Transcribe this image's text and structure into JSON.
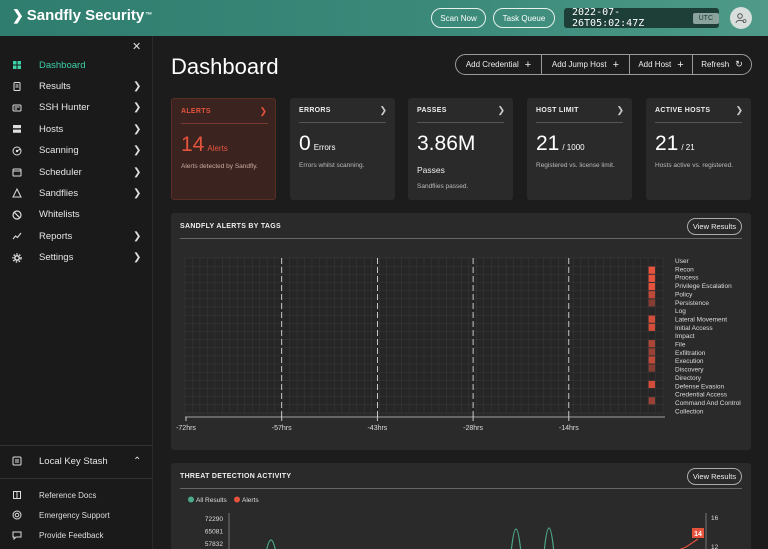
{
  "app": {
    "name": "Sandfly Security",
    "tm": "™"
  },
  "topbar": {
    "scan_now": "Scan Now",
    "task_queue": "Task Queue",
    "clock": "2022-07-26T05:02:47Z",
    "tz": "UTC"
  },
  "sidebar": {
    "items": [
      {
        "label": "Dashboard",
        "icon": "dashboard-icon",
        "active": true,
        "arrow": false
      },
      {
        "label": "Results",
        "icon": "clipboard-icon",
        "active": false,
        "arrow": true
      },
      {
        "label": "SSH Hunter",
        "icon": "ssh-key-icon",
        "active": false,
        "arrow": true
      },
      {
        "label": "Hosts",
        "icon": "server-icon",
        "active": false,
        "arrow": true
      },
      {
        "label": "Scanning",
        "icon": "radar-icon",
        "active": false,
        "arrow": true
      },
      {
        "label": "Scheduler",
        "icon": "calendar-icon",
        "active": false,
        "arrow": true
      },
      {
        "label": "Sandflies",
        "icon": "sandfly-icon",
        "active": false,
        "arrow": true
      },
      {
        "label": "Whitelists",
        "icon": "ban-icon",
        "active": false,
        "arrow": false
      },
      {
        "label": "Reports",
        "icon": "chart-line-icon",
        "active": false,
        "arrow": true
      },
      {
        "label": "Settings",
        "icon": "gear-icon",
        "active": false,
        "arrow": true
      }
    ],
    "key_stash": "Local Key Stash",
    "footer": [
      {
        "label": "Reference Docs",
        "icon": "book-icon"
      },
      {
        "label": "Emergency Support",
        "icon": "lifebuoy-icon"
      },
      {
        "label": "Provide Feedback",
        "icon": "comment-icon"
      }
    ]
  },
  "main": {
    "title": "Dashboard",
    "actions": [
      "Add Credential",
      "Add Jump Host",
      "Add Host",
      "Refresh"
    ]
  },
  "cards": [
    {
      "title": "ALERTS",
      "value": "14",
      "unit": "Alerts",
      "sub": "Alerts detected by Sandfly.",
      "mid": ""
    },
    {
      "title": "ERRORS",
      "value": "0",
      "unit": "Errors",
      "sub": "Errors whilst scanning.",
      "mid": ""
    },
    {
      "title": "PASSES",
      "value": "3.86M",
      "unit": "",
      "sub": "Sandflies passed.",
      "mid": "Passes"
    },
    {
      "title": "HOST LIMIT",
      "value": "21",
      "unit": "/ 1000",
      "sub": "Registered vs. license limit.",
      "mid": ""
    },
    {
      "title": "ACTIVE HOSTS",
      "value": "21",
      "unit": "/ 21",
      "sub": "Hosts active vs. registered.",
      "mid": ""
    }
  ],
  "alerts_panel": {
    "title": "SANDFLY ALERTS BY TAGS",
    "view": "View Results"
  },
  "threat_panel": {
    "title": "THREAT DETECTION ACTIVITY",
    "view": "View Results"
  },
  "chart_data": [
    {
      "type": "heatmap",
      "title": "SANDFLY ALERTS BY TAGS",
      "x_ticks": [
        "-72hrs",
        "-57hrs",
        "-43hrs",
        "-28hrs",
        "-14hrs"
      ],
      "tags": [
        "User",
        "Recon",
        "Process",
        "Privilege Escalation",
        "Policy",
        "Persistence",
        "Log",
        "Lateral Movement",
        "Initial Access",
        "Impact",
        "File",
        "Exfiltration",
        "Execution",
        "Discovery",
        "Directory",
        "Defense Evasion",
        "Credential Access",
        "Command And Control",
        "Collection"
      ],
      "recent_alert_intensity": [
        0,
        1,
        1,
        1,
        0.8,
        0.5,
        0,
        0.9,
        0.9,
        0,
        0.7,
        0.6,
        0.8,
        0.5,
        0,
        0.9,
        0,
        0.6,
        0
      ],
      "colors": {
        "alert": "#e5533d",
        "grid": "#333333",
        "cell": "#262626"
      }
    },
    {
      "type": "line",
      "title": "THREAT DETECTION ACTIVITY",
      "series": [
        {
          "name": "All Results",
          "color": "#4ba88a"
        },
        {
          "name": "Alerts",
          "color": "#e5533d"
        }
      ],
      "y_ticks_left": [
        "72290",
        "65081",
        "57832"
      ],
      "y_ticks_right": [
        "16",
        "12"
      ],
      "badge": "14"
    }
  ]
}
